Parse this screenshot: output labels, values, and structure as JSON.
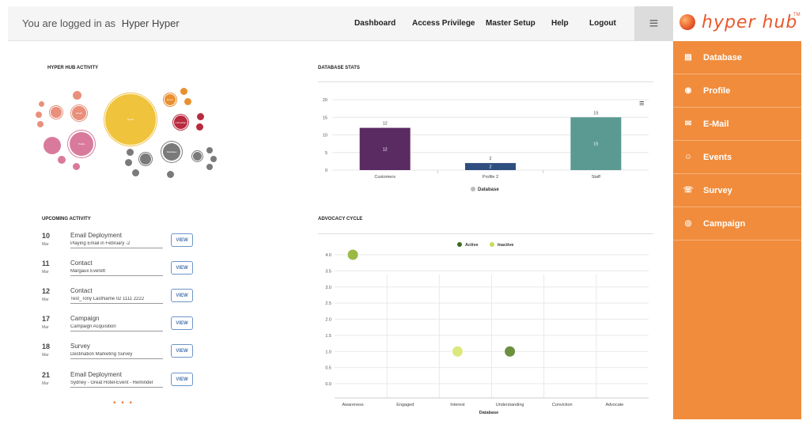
{
  "header": {
    "login_prefix": "You are logged in as",
    "user_name": "Hyper Hyper",
    "nav": [
      "Dashboard",
      "Access Privilege",
      "Master Setup",
      "Help",
      "Logout"
    ]
  },
  "logo": {
    "text": "hyper hub",
    "tm": "TM"
  },
  "sidebar": {
    "items": [
      {
        "label": "Database",
        "icon": "database-icon"
      },
      {
        "label": "Profile",
        "icon": "profile-icon"
      },
      {
        "label": "E-Mail",
        "icon": "email-icon"
      },
      {
        "label": "Events",
        "icon": "events-icon"
      },
      {
        "label": "Survey",
        "icon": "survey-icon"
      },
      {
        "label": "Campaign",
        "icon": "campaign-icon"
      }
    ]
  },
  "activity": {
    "title": "HYPER HUB ACTIVITY",
    "bubble_labels": [
      "Email",
      "Database",
      "Profile",
      "Event",
      "Campaign"
    ]
  },
  "upcoming": {
    "title": "UPCOMING ACTIVITY",
    "view_label": "VIEW",
    "items": [
      {
        "day": "10",
        "month": "Mar",
        "type": "Email Deployment",
        "detail": "Playing Email in February -2"
      },
      {
        "day": "11",
        "month": "Mar",
        "type": "Contact",
        "detail": "Margaux Everett"
      },
      {
        "day": "12",
        "month": "Mar",
        "type": "Contact",
        "detail": "Test_Tony LastName 02 1111 2222"
      },
      {
        "day": "17",
        "month": "Mar",
        "type": "Campaign",
        "detail": "Campaign Acquisition"
      },
      {
        "day": "18",
        "month": "Mar",
        "type": "Survey",
        "detail": "Destination Marketing Survey"
      },
      {
        "day": "21",
        "month": "Mar",
        "type": "Email Deployment",
        "detail": "Sydney - Great Hotel-Event - Reminder"
      }
    ],
    "more": "• • •"
  },
  "colors": {
    "accent": "#f08c3c",
    "customers": "#5a2a63",
    "profile2": "#2d4e7e",
    "staff": "#5a9a93",
    "active": "#3d6b1e",
    "inactive": "#c8dc57"
  },
  "chart_data": [
    {
      "type": "bar",
      "title": "DATABASE STATS",
      "categories": [
        "Customers",
        "Profile 2",
        "Staff"
      ],
      "series": [
        {
          "name": "Database",
          "values": [
            12,
            2,
            15
          ]
        }
      ],
      "ylim": [
        0,
        20
      ],
      "yticks": [
        0,
        5,
        10,
        15,
        20
      ],
      "legend": "bottom",
      "grid": true
    },
    {
      "type": "scatter",
      "title": "ADVOCACY CYCLE",
      "categories": [
        "Awareness",
        "Engaged",
        "Interest",
        "Understanding",
        "Conviction",
        "Advocate"
      ],
      "xlabel": "Database",
      "ylim": [
        0,
        4
      ],
      "yticks": [
        "0.0",
        "0.5",
        "1.0",
        "1.5",
        "2.0",
        "2.5",
        "3.0",
        "3.5",
        "4.0"
      ],
      "series": [
        {
          "name": "Active",
          "points": [
            {
              "x": "Understanding",
              "y": 1.0
            }
          ]
        },
        {
          "name": "Inactive",
          "points": [
            {
              "x": "Awareness",
              "y": 4.0
            },
            {
              "x": "Interest",
              "y": 1.0
            }
          ]
        }
      ],
      "legend": "top",
      "grid": true
    }
  ]
}
